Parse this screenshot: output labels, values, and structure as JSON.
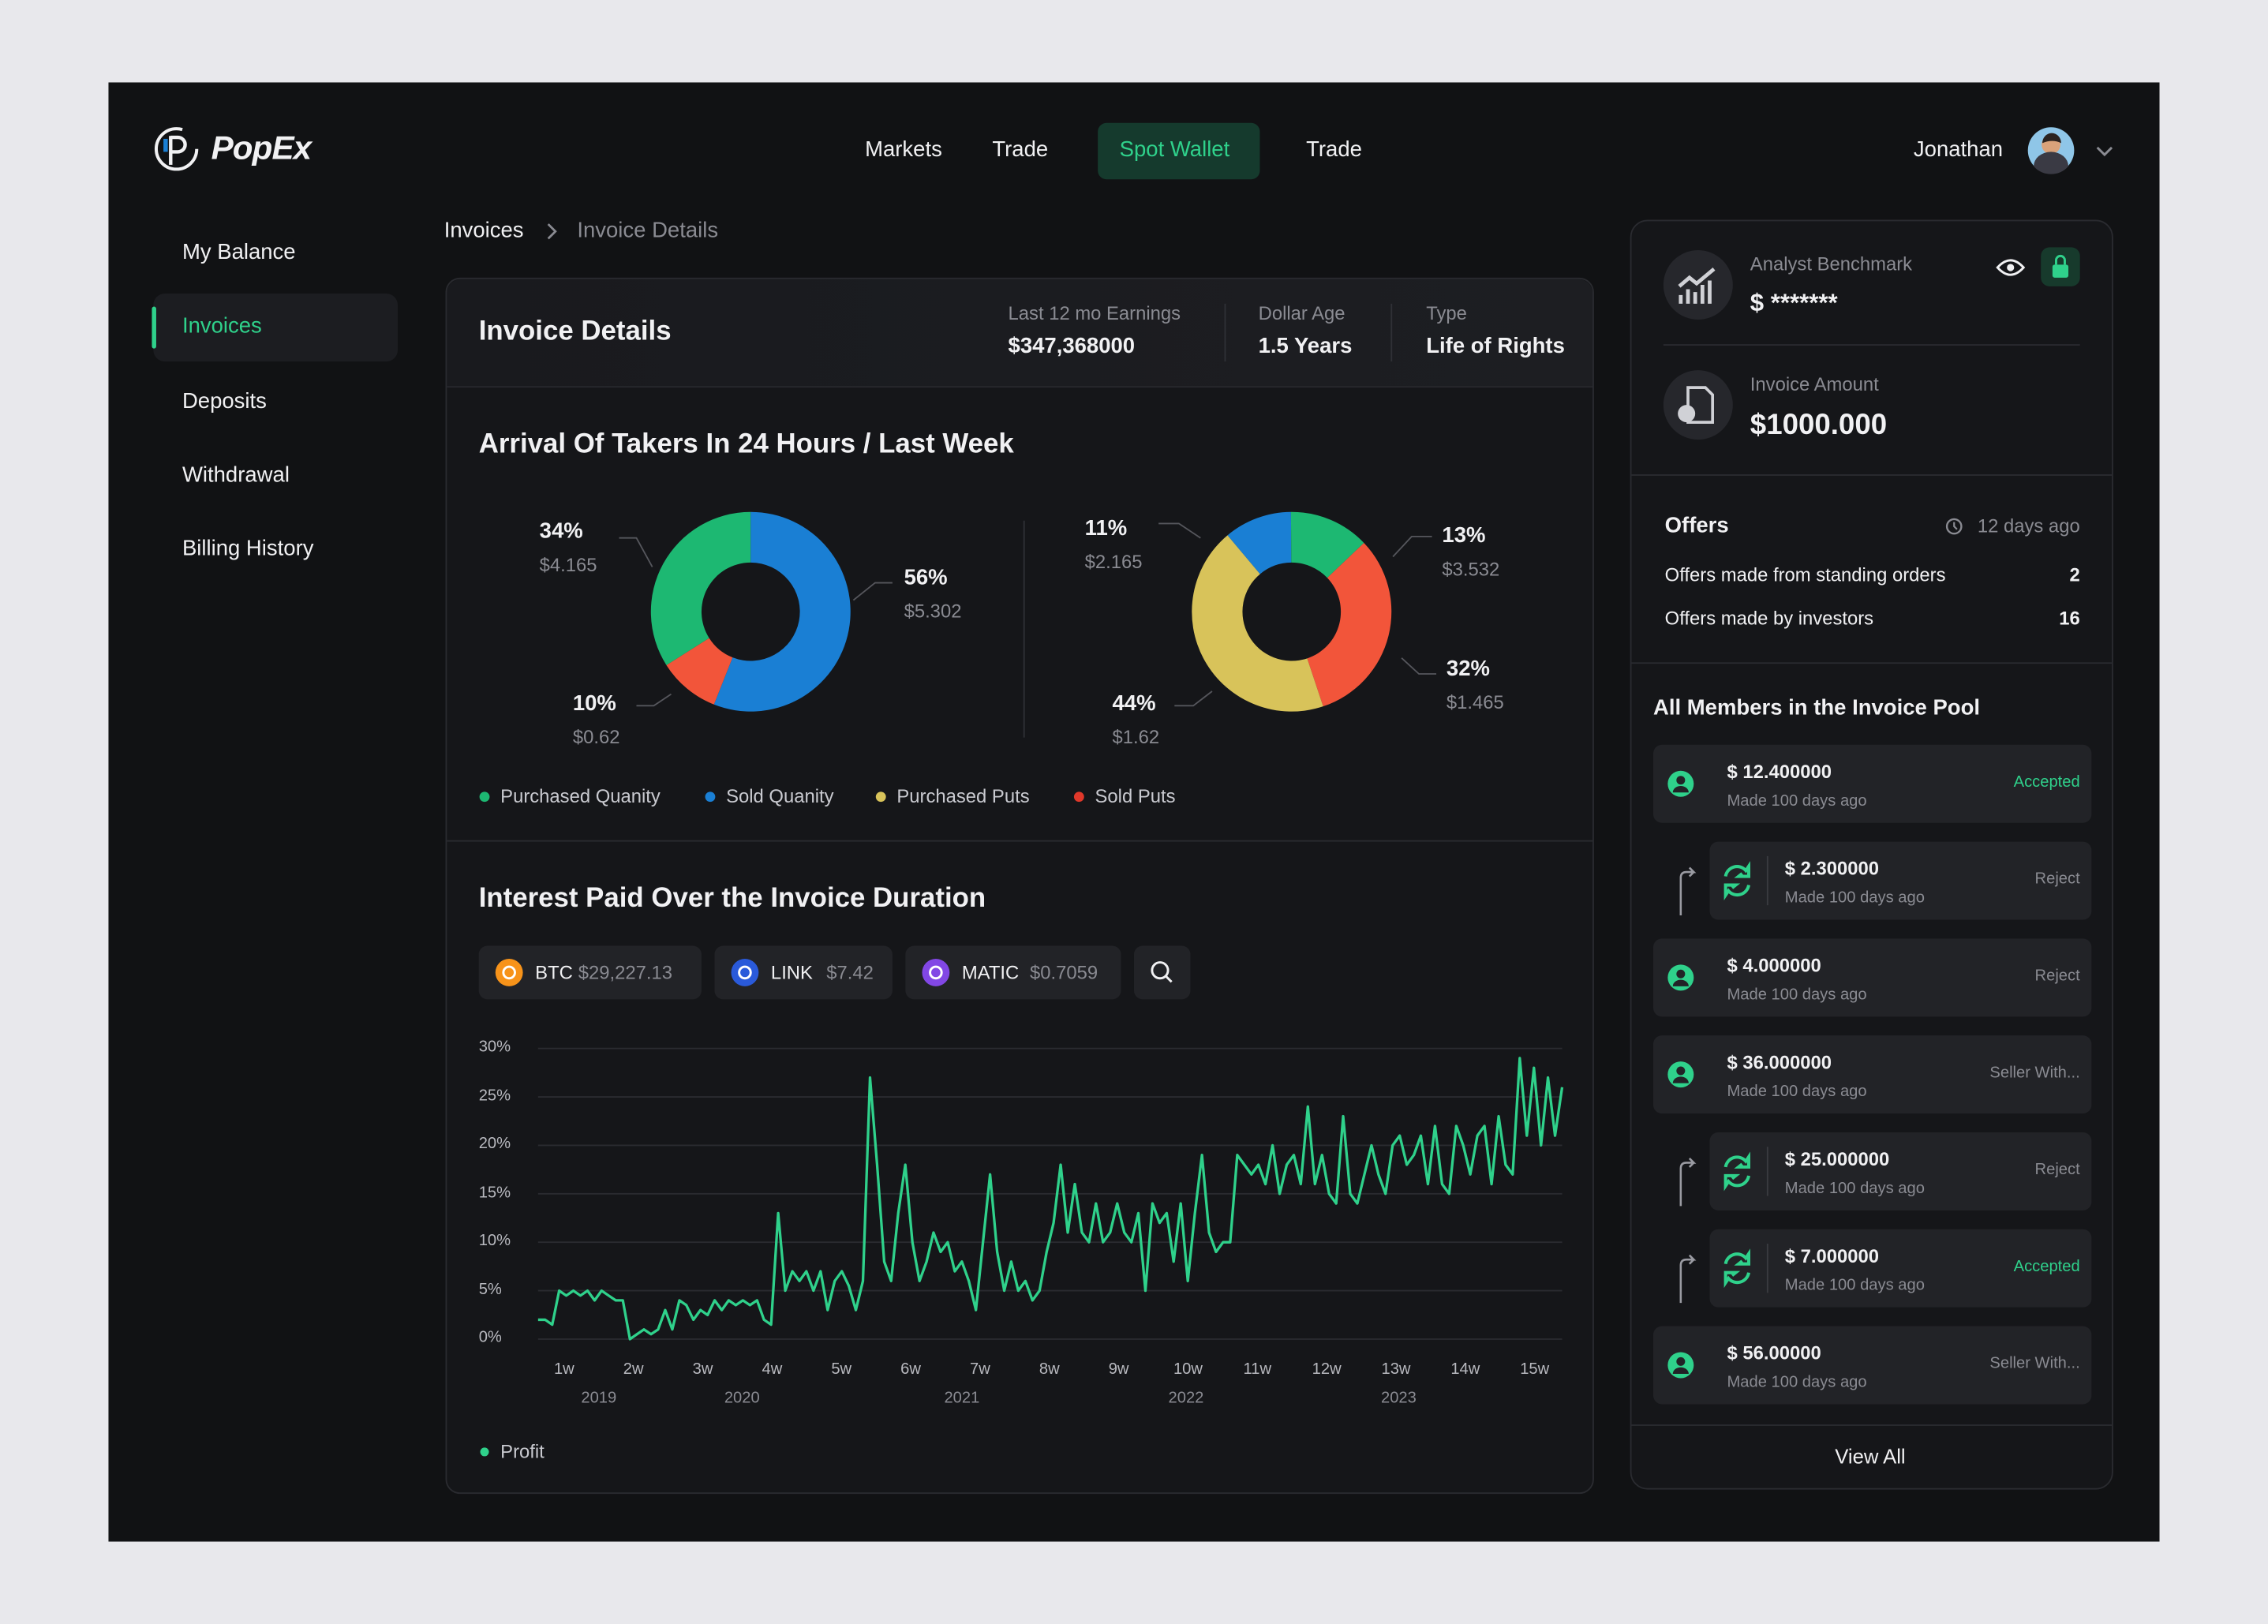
{
  "logo": "PopEx",
  "nav": {
    "items": [
      "Markets",
      "Trade",
      "Spot Wallet",
      "Trade"
    ],
    "active": 2
  },
  "user": "Jonathan",
  "sidebar": {
    "items": [
      "My Balance",
      "Invoices",
      "Deposits",
      "Withdrawal",
      "Billing History"
    ],
    "active": 1
  },
  "breadcrumb": [
    "Invoices",
    "Invoice Details"
  ],
  "invoice": {
    "title": "Invoice Details",
    "stats": [
      {
        "label": "Last 12 mo Earnings",
        "value": "$347,368000"
      },
      {
        "label": "Dollar Age",
        "value": "1.5 Years"
      },
      {
        "label": "Type",
        "value": "Life of Rights"
      }
    ]
  },
  "takers": {
    "title": "Arrival Of Takers In 24 Hours / Last Week",
    "charts": [
      {
        "type": "donut",
        "values": [
          34,
          56,
          10
        ],
        "value_labels": [
          "34%",
          "56%",
          "10%"
        ],
        "amounts": [
          "$4.165",
          "$5.302",
          "$0.62"
        ],
        "colors": [
          "#1db872",
          "#1a7fd4",
          "#f2553a"
        ]
      },
      {
        "type": "donut",
        "values": [
          11,
          13,
          32,
          44
        ],
        "value_labels": [
          "11%",
          "13%",
          "32%",
          "44%"
        ],
        "amounts": [
          "$2.165",
          "$3.532",
          "$1.465",
          "$1.62"
        ],
        "colors": [
          "#1a7fd4",
          "#1db872",
          "#f2553a",
          "#d8c35a"
        ]
      }
    ],
    "legend": [
      {
        "name": "Purchased Quanity",
        "color": "#1db872"
      },
      {
        "name": "Sold Quanity",
        "color": "#1a7fd4"
      },
      {
        "name": "Purchased Puts",
        "color": "#d8c35a"
      },
      {
        "name": "Sold Puts",
        "color": "#e0382a"
      }
    ]
  },
  "interest": {
    "title": "Interest Paid Over the Invoice Duration",
    "tickers": [
      {
        "symbol": "BTC",
        "price": "$29,227.13",
        "color": "#f7931a"
      },
      {
        "symbol": "LINK",
        "price": "$7.42",
        "color": "#2a5ada"
      },
      {
        "symbol": "MATIC",
        "price": "$0.7059",
        "color": "#8247e5"
      }
    ],
    "chart": {
      "type": "line",
      "xtick_labels": [
        "1w",
        "2w",
        "3w",
        "4w",
        "5w",
        "6w",
        "7w",
        "8w",
        "9w",
        "10w",
        "11w",
        "12w",
        "13w",
        "14w",
        "15w"
      ],
      "years": [
        "2019",
        "2020",
        "2021",
        "2022",
        "2023"
      ],
      "ylim": [
        0,
        30
      ],
      "yticks": [
        {
          "value": 0,
          "label": "0%"
        },
        {
          "value": 5,
          "label": "5%"
        },
        {
          "value": 10,
          "label": "10%"
        },
        {
          "value": 15,
          "label": "15%"
        },
        {
          "value": 20,
          "label": "20%"
        },
        {
          "value": 25,
          "label": "25%"
        },
        {
          "value": 30,
          "label": "30%"
        }
      ],
      "grid": true,
      "series": [
        {
          "name": "Profit",
          "color": "#2fd18b",
          "values": [
            2,
            2,
            1.5,
            5,
            4.5,
            5,
            4.5,
            5,
            4,
            5,
            4.5,
            4,
            4,
            0,
            0.5,
            1,
            0.5,
            1,
            3,
            1,
            4,
            3.5,
            2,
            3,
            2.5,
            4,
            3,
            4,
            3.5,
            4,
            3.5,
            4,
            2,
            1.5,
            13,
            5,
            7,
            6,
            7,
            5,
            7,
            3,
            6,
            7,
            5.5,
            3,
            6,
            27,
            18,
            8,
            6,
            13,
            18,
            10,
            6,
            8,
            11,
            9,
            10,
            7,
            8,
            6,
            3,
            10,
            17,
            9,
            5,
            8,
            5,
            6,
            4,
            5,
            9,
            12,
            18,
            11,
            16,
            11,
            10,
            14,
            10,
            11,
            14,
            11,
            10,
            13,
            5,
            14,
            12,
            13,
            8,
            14,
            6,
            13,
            19,
            11,
            9,
            10,
            10,
            19,
            18,
            17,
            18,
            16,
            20,
            15,
            18,
            19,
            16,
            24,
            16,
            19,
            15,
            14,
            23,
            15,
            14,
            17,
            20,
            17,
            15,
            20,
            21,
            18,
            19,
            21,
            16,
            22,
            16,
            15,
            22,
            20,
            17,
            21,
            22,
            16,
            23,
            18,
            17,
            29,
            21,
            28,
            20,
            27,
            21,
            26
          ]
        }
      ]
    }
  },
  "benchmark": {
    "label": "Analyst Benchmark",
    "value": "$ *******"
  },
  "invoice_amount": {
    "label": "Invoice Amount",
    "value": "$1000.000"
  },
  "offers": {
    "title": "Offers",
    "age": "12 days ago",
    "rows": [
      {
        "label": "Offers made from standing orders",
        "value": 2
      },
      {
        "label": "Offers made by investors",
        "value": 16
      }
    ]
  },
  "members": {
    "title": "All Members in the Invoice Pool",
    "items": [
      {
        "amount": "$ 12.400000",
        "date": "Made 100 days ago",
        "status": "Accepted",
        "status_color": "#2fd18b",
        "nested": false
      },
      {
        "amount": "$ 2.300000",
        "date": "Made 100 days ago",
        "status": "Reject",
        "status_color": "#8a8b92",
        "nested": true
      },
      {
        "amount": "$ 4.000000",
        "date": "Made 100 days ago",
        "status": "Reject",
        "status_color": "#8a8b92",
        "nested": false
      },
      {
        "amount": "$ 36.000000",
        "date": "Made 100 days ago",
        "status": "Seller With...",
        "status_color": "#8a8b92",
        "nested": false
      },
      {
        "amount": "$ 25.000000",
        "date": "Made 100 days ago",
        "status": "Reject",
        "status_color": "#8a8b92",
        "nested": true
      },
      {
        "amount": "$ 7.000000",
        "date": "Made 100 days ago",
        "status": "Accepted",
        "status_color": "#2fd18b",
        "nested": true
      },
      {
        "amount": "$ 56.00000",
        "date": "Made 100 days ago",
        "status": "Seller With...",
        "status_color": "#8a8b92",
        "nested": false
      }
    ],
    "view_all": "View All"
  }
}
